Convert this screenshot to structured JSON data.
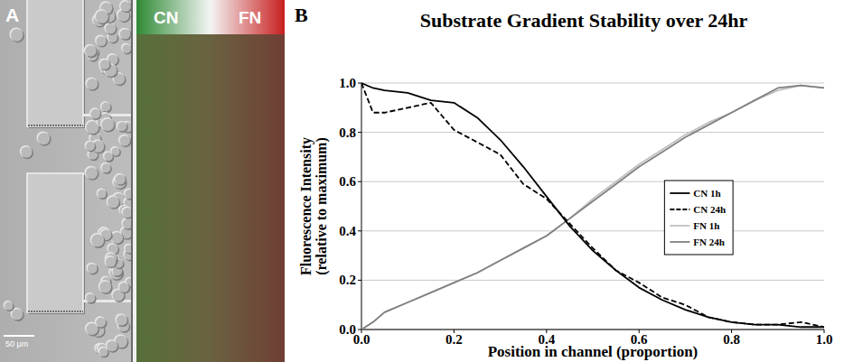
{
  "panel_a": {
    "label": "A",
    "gradient_labels": [
      "CN",
      "FN"
    ],
    "scale_bar": "50 µm"
  },
  "chart_data": {
    "type": "line",
    "panel_label": "B",
    "title": "Substrate Gradient Stability over 24hr",
    "xlabel": "Position in channel (proportion)",
    "ylabel": "Fluorescence Intensity (relative to maximum)",
    "x": [
      0,
      0.025,
      0.05,
      0.1,
      0.15,
      0.2,
      0.25,
      0.3,
      0.35,
      0.4,
      0.45,
      0.5,
      0.55,
      0.6,
      0.65,
      0.7,
      0.75,
      0.8,
      0.85,
      0.9,
      0.95,
      1.0
    ],
    "xlim": [
      0,
      1
    ],
    "ylim": [
      0,
      1
    ],
    "xticks": [
      {
        "value": 0,
        "label": "0.0"
      },
      {
        "value": 0.2,
        "label": "0.2"
      },
      {
        "value": 0.4,
        "label": "0.4"
      },
      {
        "value": 0.6,
        "label": "0.6"
      },
      {
        "value": 0.8,
        "label": "0.8"
      },
      {
        "value": 1,
        "label": "1.0"
      }
    ],
    "yticks": [
      {
        "value": 0,
        "label": "0.0"
      },
      {
        "value": 0.2,
        "label": "0.2"
      },
      {
        "value": 0.4,
        "label": "0.4"
      },
      {
        "value": 0.6,
        "label": "0.6"
      },
      {
        "value": 0.8,
        "label": "0.8"
      },
      {
        "value": 1,
        "label": "1.0"
      }
    ],
    "grid": true,
    "legend": "right",
    "series": [
      {
        "name": "CN 1h",
        "color": "#000000",
        "line_style": "solid",
        "values": [
          1.0,
          0.98,
          0.97,
          0.96,
          0.93,
          0.92,
          0.86,
          0.77,
          0.66,
          0.54,
          0.42,
          0.32,
          0.24,
          0.17,
          0.12,
          0.08,
          0.05,
          0.03,
          0.02,
          0.02,
          0.01,
          0.01
        ]
      },
      {
        "name": "CN 24h",
        "color": "#000000",
        "line_style": "dashed",
        "values": [
          1.0,
          0.88,
          0.88,
          0.9,
          0.92,
          0.81,
          0.76,
          0.71,
          0.59,
          0.53,
          0.43,
          0.33,
          0.24,
          0.19,
          0.13,
          0.1,
          0.05,
          0.03,
          0.02,
          0.02,
          0.03,
          0.01
        ]
      },
      {
        "name": "FN 1h",
        "color": "#c0c0c0",
        "line_style": "solid",
        "values": [
          0.0,
          0.03,
          0.07,
          0.11,
          0.15,
          0.19,
          0.23,
          0.28,
          0.33,
          0.38,
          0.45,
          0.53,
          0.6,
          0.67,
          0.73,
          0.79,
          0.84,
          0.88,
          0.93,
          0.97,
          0.99,
          0.98
        ]
      },
      {
        "name": "FN 24h",
        "color": "#808080",
        "line_style": "solid",
        "values": [
          0.0,
          0.03,
          0.07,
          0.11,
          0.15,
          0.19,
          0.23,
          0.28,
          0.33,
          0.38,
          0.45,
          0.52,
          0.59,
          0.66,
          0.72,
          0.78,
          0.83,
          0.88,
          0.93,
          0.98,
          0.99,
          0.98
        ]
      }
    ]
  }
}
